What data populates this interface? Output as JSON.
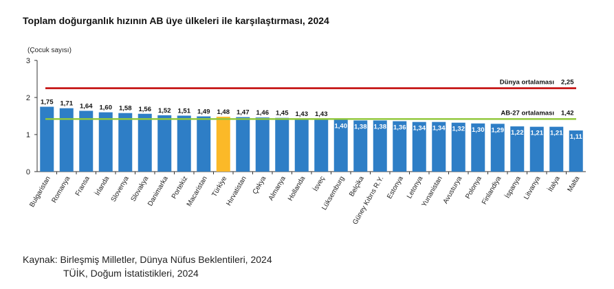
{
  "title": "Toplam doğurganlık hızının AB üye ülkeleri ile karşılaştırması, 2024",
  "source": {
    "label": "Kaynak:",
    "line1": "Birleşmiş Milletler, Dünya Nüfus Beklentileri, 2024",
    "line2": "TÜİK, Doğum İstatistikleri, 2024"
  },
  "chart_data": {
    "type": "bar",
    "ylabel": "(Çocuk sayısı)",
    "ylim": [
      0,
      3
    ],
    "yticks": [
      "0",
      "1",
      "2",
      "3"
    ],
    "categories": [
      "Bulgaristan",
      "Romanya",
      "Fransa",
      "İrlanda",
      "Slovenya",
      "Slovakya",
      "Danimarka",
      "Portekiz",
      "Macaristan",
      "Türkiye",
      "Hırvatistan",
      "Çekya",
      "Almanya",
      "Hollanda",
      "İsveç",
      "Lüksemburg",
      "Belçika",
      "Güney Kıbrıs R.Y.",
      "Estonya",
      "Letonya",
      "Yunanistan",
      "Avusturya",
      "Polonya",
      "Finlandiya",
      "İspanya",
      "Litvanya",
      "İtalya",
      "Malta"
    ],
    "values": [
      1.75,
      1.71,
      1.64,
      1.6,
      1.58,
      1.56,
      1.52,
      1.51,
      1.49,
      1.48,
      1.47,
      1.46,
      1.45,
      1.43,
      1.43,
      1.4,
      1.38,
      1.38,
      1.36,
      1.34,
      1.34,
      1.32,
      1.3,
      1.29,
      1.22,
      1.21,
      1.21,
      1.11
    ],
    "value_labels": [
      "1,75",
      "1,71",
      "1,64",
      "1,60",
      "1,58",
      "1,56",
      "1,52",
      "1,51",
      "1,49",
      "1,48",
      "1,47",
      "1,46",
      "1,45",
      "1,43",
      "1,43",
      "1,40",
      "1,38",
      "1,38",
      "1,36",
      "1,34",
      "1,34",
      "1,32",
      "1,30",
      "1,29",
      "1,22",
      "1,21",
      "1,21",
      "1,11"
    ],
    "highlight_category": "Türkiye",
    "reference_lines": [
      {
        "label": "Dünya ortalaması",
        "value": 2.25,
        "value_label": "2,25",
        "color": "#c00000"
      },
      {
        "label": "AB-27 ortalaması",
        "value": 1.42,
        "value_label": "1,42",
        "color": "#92c83e"
      }
    ],
    "colors": {
      "bar": "#2e7ec6",
      "highlight": "#fbb928",
      "axis": "#333333"
    },
    "grid": false
  }
}
